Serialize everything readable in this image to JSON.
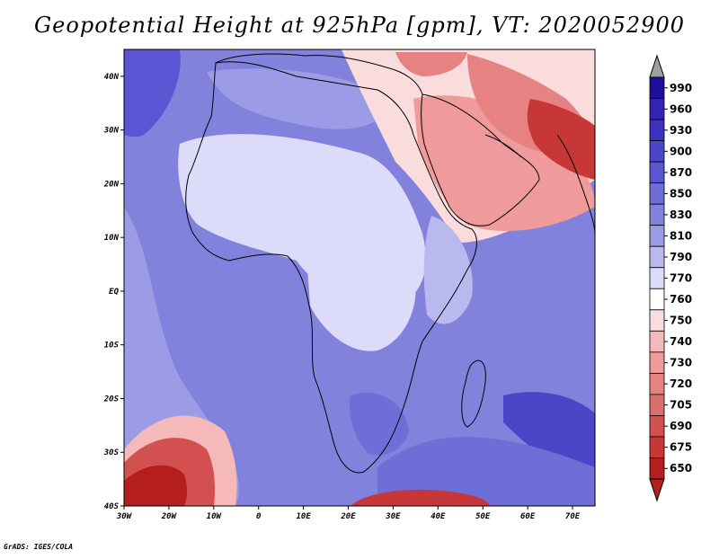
{
  "title": "Geopotential Height at 925hPa [gpm], VT: 2020052900",
  "credit": "GrADS: IGES/COLA",
  "axes": {
    "lon_labels": [
      "30W",
      "20W",
      "10W",
      "0",
      "10E",
      "20E",
      "30E",
      "40E",
      "50E",
      "60E",
      "70E"
    ],
    "lat_labels": [
      "40N",
      "30N",
      "20N",
      "10N",
      "EQ",
      "10S",
      "20S",
      "30S",
      "40S"
    ]
  },
  "colorbar": {
    "labels": [
      "990",
      "960",
      "930",
      "900",
      "870",
      "850",
      "830",
      "810",
      "790",
      "770",
      "760",
      "750",
      "740",
      "730",
      "720",
      "705",
      "690",
      "675",
      "650"
    ],
    "colors": [
      "#1e0f9b",
      "#3223b4",
      "#3c32be",
      "#4b46c8",
      "#5a55d2",
      "#6e6ed7",
      "#8282dc",
      "#9b9be6",
      "#b9b9f0",
      "#dcdcfa",
      "#ffffff",
      "#fadcdc",
      "#f5b9b9",
      "#f09b9b",
      "#e68282",
      "#dc6e6e",
      "#d25050",
      "#c83737",
      "#b41e1e"
    ],
    "top_arrow_color": "#a0a0a0",
    "bottom_arrow_color": "#b41e1e"
  },
  "map": {
    "background_color": "#8282dc",
    "region": "Africa and Middle East, 30W-75E, 40S-45N",
    "features": [
      {
        "name": "saharan-pale-region",
        "color": "#dcdcfa"
      },
      {
        "name": "arabia-low-heights",
        "color": "#f09b9b"
      },
      {
        "name": "south-atlantic-low",
        "color": "#c83737"
      },
      {
        "name": "southern-ocean-low",
        "color": "#b41e1e"
      },
      {
        "name": "mediterranean-low",
        "color": "#f5b9b9"
      }
    ]
  }
}
